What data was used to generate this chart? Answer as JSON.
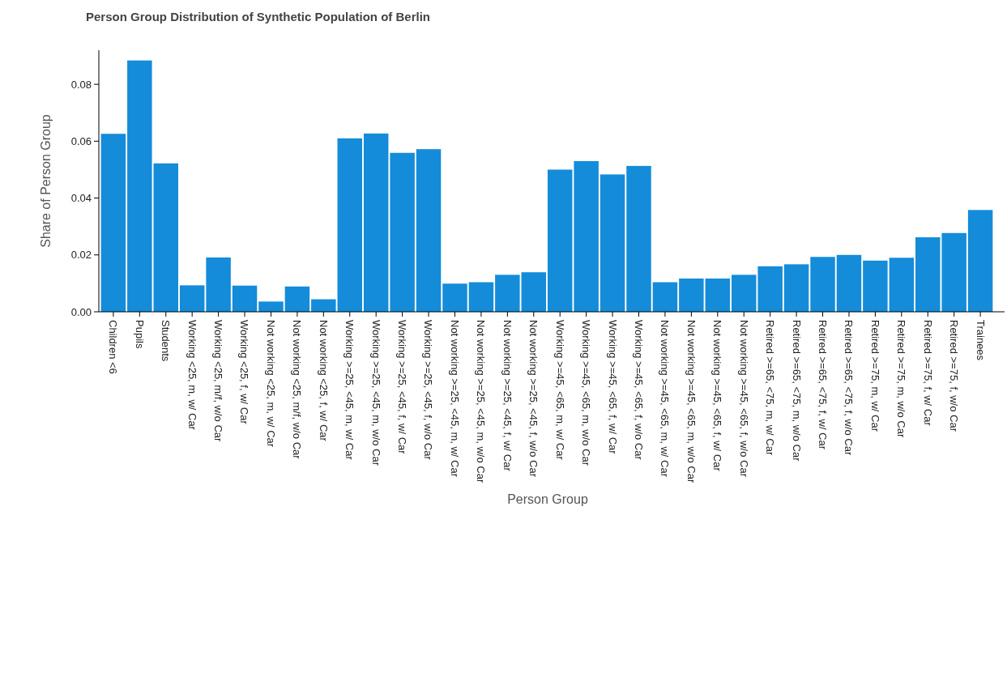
{
  "chart_data": {
    "type": "bar",
    "title": "Person Group Distribution of Synthetic Population of Berlin",
    "xlabel": "Person Group",
    "ylabel": "Share of Person Group",
    "categories": [
      "Children <6",
      "Pupils",
      "Students",
      "Working <25, m, w/ Car",
      "Working <25, m/f, w/o Car",
      "Working <25, f, w/ Car",
      "Not working <25, m, w/ Car",
      "Not working <25, m/f, w/o Car",
      "Not working <25, f, w/ Car",
      "Working >=25, <45, m, w/ Car",
      "Working >=25, <45, m, w/o Car",
      "Working >=25, <45, f, w/ Car",
      "Working >=25, <45, f, w/o Car",
      "Not working >=25, <45, m, w/ Car",
      "Not working >=25, <45, m, w/o Car",
      "Not working >=25, <45, f, w/ Car",
      "Not working >=25, <45, f, w/o Car",
      "Working >=45, <65, m, w/ Car",
      "Working >=45, <65, m, w/o Car",
      "Working >=45, <65, f, w/ Car",
      "Working >=45, <65, f, w/o Car",
      "Not working >=45, <65, m, w/ Car",
      "Not working >=45, <65, m, w/o Car",
      "Not working >=45, <65, f, w/ Car",
      "Not working >=45, <65, f, w/o Car",
      "Retired >=65, <75, m, w/ Car",
      "Retired >=65, <75, m, w/o Car",
      "Retired >=65, <75, f, w/ Car",
      "Retired >=65, <75, f, w/o Car",
      "Retired >=75, m, w/ Car",
      "Retired >=75, m, w/o Car",
      "Retired >=75, f, w/ Car",
      "Retired >=75, f, w/o Car",
      "Trainees"
    ],
    "values": [
      0.0626,
      0.0884,
      0.0522,
      0.0093,
      0.0191,
      0.0092,
      0.0036,
      0.0089,
      0.0044,
      0.061,
      0.0627,
      0.0559,
      0.0572,
      0.0099,
      0.0104,
      0.013,
      0.0139,
      0.05,
      0.053,
      0.0483,
      0.0513,
      0.0104,
      0.0117,
      0.0117,
      0.013,
      0.016,
      0.0167,
      0.0193,
      0.02,
      0.018,
      0.019,
      0.0262,
      0.0277,
      0.0358
    ],
    "color": "#148cd9",
    "ylim": [
      0,
      0.092
    ],
    "yticks": [
      {
        "value": 0,
        "label": "0.00"
      },
      {
        "value": 0.02,
        "label": "0.02"
      },
      {
        "value": 0.04,
        "label": "0.04"
      },
      {
        "value": 0.06,
        "label": "0.06"
      },
      {
        "value": 0.08,
        "label": "0.08"
      }
    ],
    "grid": false
  }
}
